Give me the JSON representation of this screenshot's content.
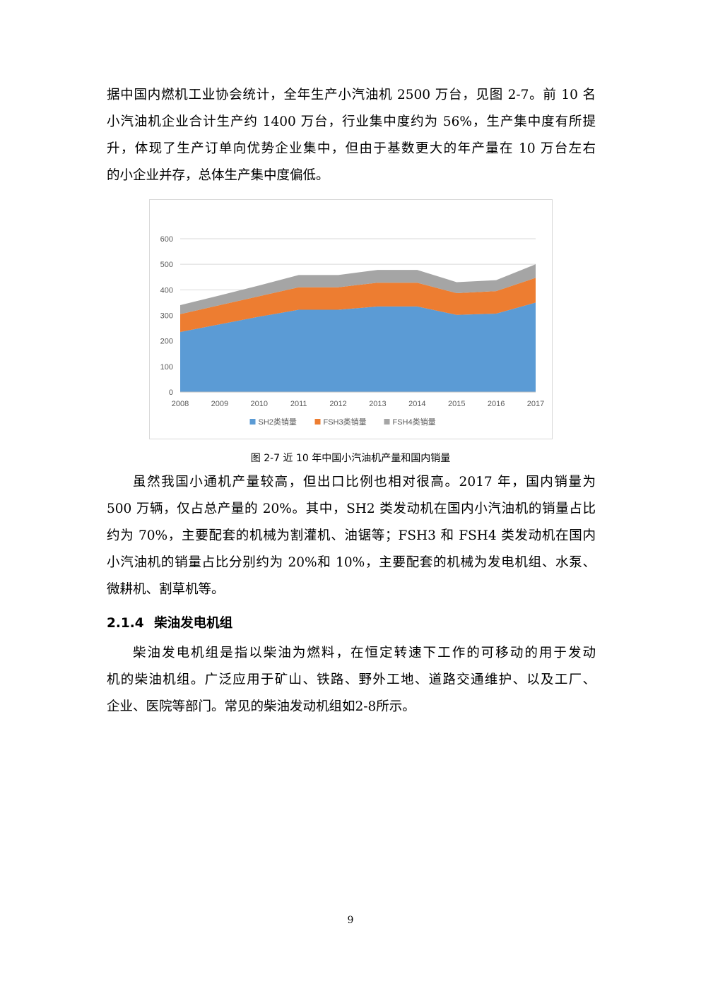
{
  "paragraph1": {
    "lines": [
      "据中国内燃机工业协会统计，全年生产小汽油机 2500 万台，见图 2-7。前 10 名",
      "小汽油机企业合计生产约 1400 万台，行业集中度约为 56%，生产集中度有所提",
      "升，体现了生产订单向优势企业集中，但由于基数更大的年产量在 10 万台左右",
      "的小企业并存，总体生产集中度偏低。"
    ]
  },
  "figure": {
    "caption": "图 2-7  近 10 年中国小汽油机产量和国内销量"
  },
  "chart_data": {
    "type": "area",
    "stacked": true,
    "x": [
      "2008",
      "2009",
      "2010",
      "2011",
      "2012",
      "2013",
      "2014",
      "2015",
      "2016",
      "2017"
    ],
    "y_ticks": [
      "0",
      "100",
      "200",
      "300",
      "400",
      "500",
      "600"
    ],
    "ylim": [
      0,
      600
    ],
    "grid": true,
    "legend_position": "bottom",
    "series": [
      {
        "name": "SH2类销量",
        "color": "#5b9bd5",
        "values": [
          235,
          265,
          295,
          322,
          322,
          335,
          335,
          302,
          307,
          350
        ]
      },
      {
        "name": "FSH3类销量",
        "color": "#ed7d31",
        "values": [
          70,
          75,
          80,
          88,
          88,
          93,
          93,
          85,
          88,
          97
        ]
      },
      {
        "name": "FSH4类销量",
        "color": "#a5a5a5",
        "values": [
          35,
          38,
          42,
          48,
          48,
          50,
          50,
          43,
          43,
          53
        ]
      }
    ]
  },
  "paragraph2": {
    "lines": [
      "虽然我国小通机产量较高，但出口比例也相对很高。2017 年，国内销量为",
      "500 万辆，仅占总产量的 20%。其中，SH2 类发动机在国内小汽油机的销量占比",
      "约为 70%，主要配套的机械为割灌机、油锯等；FSH3 和 FSH4 类发动机在国内",
      "小汽油机的销量占比分别约为 20%和 10%，主要配套的机械为发电机组、水泵、",
      "微耕机、割草机等。"
    ]
  },
  "section": {
    "number": "2.1.4",
    "title": "柴油发电机组"
  },
  "paragraph3": {
    "lines": [
      "柴油发电机组是指以柴油为燃料，在恒定转速下工作的可移动的用于发动",
      "机的柴油机组。广泛应用于矿山、铁路、野外工地、道路交通维护、以及工厂、",
      "企业、医院等部门。常见的柴油发动机组如2-8所示。"
    ]
  },
  "page_number": "9"
}
